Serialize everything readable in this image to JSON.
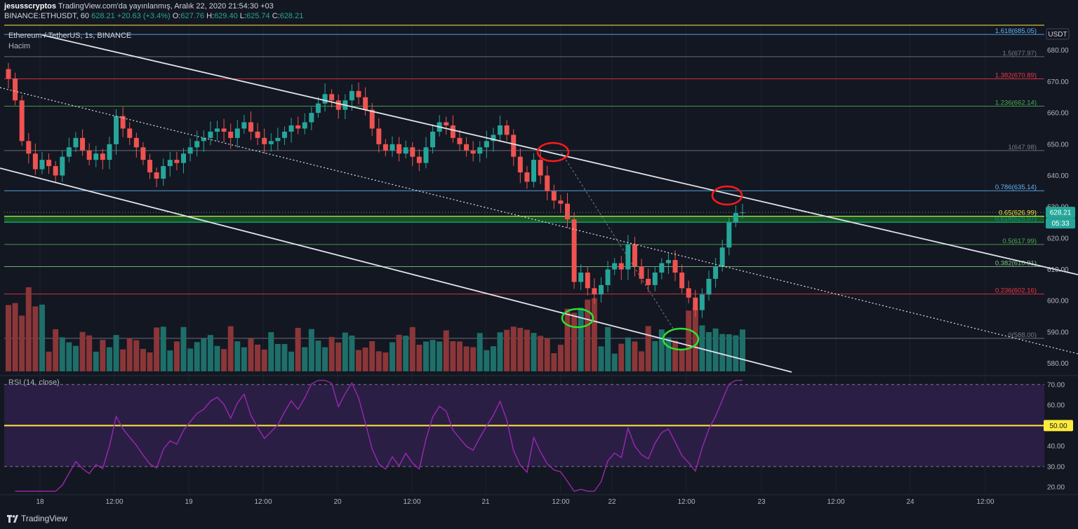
{
  "header": {
    "publisher": "jesusscryptos",
    "published_text": "TradingView.com'da yayınlanmış, Aralık 22, 2020 21:54:30 +03",
    "symbol": "BINANCE:ETHUSDT, 60",
    "last": "628.21",
    "change": "+20.63 (+3.4%)",
    "o_label": "O:",
    "o_val": "627.76",
    "h_label": "H:",
    "h_val": "629.40",
    "l_label": "L:",
    "l_val": "625.74",
    "c_label": "C:",
    "c_val": "628.21"
  },
  "legend": {
    "title": "Ethereum / TetherUS, 1s, BINANCE",
    "volume": "Hacim",
    "rsi": "RSI (14, close)"
  },
  "price_axis": {
    "currency": "USDT",
    "current_price": "628.21",
    "countdown": "05:33",
    "rsi_current": "50.00"
  },
  "footer": {
    "brand": "TradingView"
  },
  "colors": {
    "up": "#26a69a",
    "down": "#ef5350",
    "up_vol": "#1e6f69",
    "down_vol": "#8b3638",
    "rsi_line": "#9c27b0",
    "rsi_band": "#2a1e45",
    "rsi_mid": "#ffeb3b"
  },
  "chart_data": [
    {
      "type": "candlestick",
      "title": "Ethereum / TetherUS, 1s, BINANCE",
      "ylim": [
        577,
        688
      ],
      "y_ticks": [
        580,
        590,
        600,
        610,
        620,
        630,
        640,
        650,
        660,
        670,
        680
      ],
      "x_ticks": [
        "18",
        "12:00",
        "19",
        "12:00",
        "20",
        "12:00",
        "21",
        "12:00",
        "22",
        "12:00",
        "23",
        "12:00",
        "24",
        "12:00"
      ],
      "fib_levels": [
        {
          "label": "0(588.00)",
          "value": 588.0,
          "color": "#787b86"
        },
        {
          "label": "0.236(602.16)",
          "value": 602.16,
          "color": "#f23645"
        },
        {
          "label": "0.382(610.91)",
          "value": 610.91,
          "color": "#81c784"
        },
        {
          "label": "0.5(617.99)",
          "value": 617.99,
          "color": "#4caf50"
        },
        {
          "label": "0.618(625.07)",
          "value": 625.07,
          "color": "#089981"
        },
        {
          "label": "0.65(626.99)",
          "value": 626.99,
          "color": "#ffeb3b"
        },
        {
          "label": "0.786(635.14)",
          "value": 635.14,
          "color": "#64b5f6"
        },
        {
          "label": "1(647.98)",
          "value": 647.98,
          "color": "#787b86"
        },
        {
          "label": "1.236(662.14)",
          "value": 662.14,
          "color": "#4caf50"
        },
        {
          "label": "1.382(670.89)",
          "value": 670.89,
          "color": "#f23645"
        },
        {
          "label": "1.5(677.97)",
          "value": 677.97,
          "color": "#787b86"
        },
        {
          "label": "1.618(685.05)",
          "value": 685.05,
          "color": "#64b5f6"
        }
      ],
      "closes": [
        671,
        664,
        651,
        647,
        642,
        645,
        643,
        640,
        646,
        649,
        652,
        648,
        645,
        647,
        645,
        650,
        659,
        655,
        652,
        649,
        645,
        641,
        639,
        643,
        645,
        644,
        647,
        649,
        651,
        652,
        654,
        655,
        654,
        652,
        655,
        657,
        654,
        652,
        650,
        651,
        652,
        654,
        656,
        655,
        657,
        660,
        663,
        666,
        664,
        661,
        664,
        667,
        665,
        661,
        655,
        650,
        648,
        650,
        647,
        649,
        646,
        644,
        649,
        654,
        657,
        656,
        652,
        650,
        648,
        647,
        649,
        651,
        653,
        656,
        653,
        646,
        641,
        638,
        645,
        640,
        635,
        632,
        631,
        626,
        606,
        609,
        604,
        602,
        605,
        610,
        612,
        610,
        618,
        611,
        607,
        605,
        609,
        612,
        613,
        609,
        604,
        601,
        597,
        602,
        607,
        611,
        617,
        625,
        628,
        628.21
      ],
      "rsi": {
        "title": "RSI (14, close)",
        "ylim": [
          17,
          73
        ],
        "y_ticks": [
          20,
          30,
          40,
          50,
          60,
          70
        ],
        "bands": [
          30,
          70
        ],
        "mid": 50,
        "current": 50.0
      }
    }
  ]
}
